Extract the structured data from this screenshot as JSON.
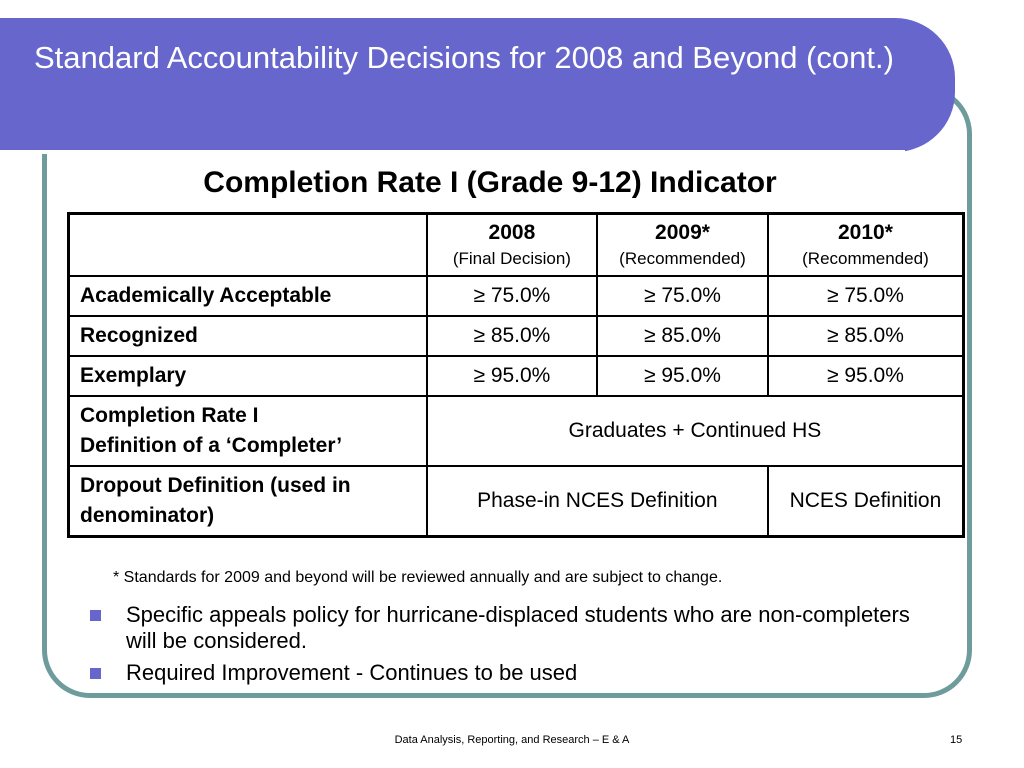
{
  "slide": {
    "title": "Standard Accountability Decisions for 2008 and Beyond (cont.)",
    "subtitle": "Completion Rate I (Grade 9-12) Indicator",
    "colors": {
      "title_bar": "#6666cc",
      "frame_border": "#6e9c9c",
      "bullet": "#6666cc"
    }
  },
  "table": {
    "columns": [
      {
        "year": "2008",
        "note": "(Final Decision)"
      },
      {
        "year": "2009*",
        "note": "(Recommended)"
      },
      {
        "year": "2010*",
        "note": "(Recommended)"
      }
    ],
    "rows": [
      {
        "label": "Academically Acceptable",
        "values": [
          "≥ 75.0%",
          "≥ 75.0%",
          "≥ 75.0%"
        ]
      },
      {
        "label": "Recognized",
        "values": [
          "≥ 85.0%",
          "≥ 85.0%",
          "≥ 85.0%"
        ]
      },
      {
        "label": "Exemplary",
        "values": [
          "≥ 95.0%",
          "≥ 95.0%",
          "≥ 95.0%"
        ]
      }
    ],
    "completer_row": {
      "label_line1": "Completion Rate I",
      "label_line2": "Definition of a ‘Completer’",
      "value": "Graduates + Continued HS"
    },
    "dropout_row": {
      "label": "Dropout Definition (used in denominator)",
      "value_2008_2009": "Phase-in NCES Definition",
      "value_2010": "NCES Definition"
    }
  },
  "footnote": "* Standards for 2009 and beyond will be reviewed annually and are subject to change.",
  "bullets": [
    "Specific appeals policy for hurricane-displaced students who are non-completers will be considered.",
    "Required Improvement - Continues to be used"
  ],
  "footer": {
    "text": "Data Analysis, Reporting, and Research – E & A",
    "page": "15"
  }
}
